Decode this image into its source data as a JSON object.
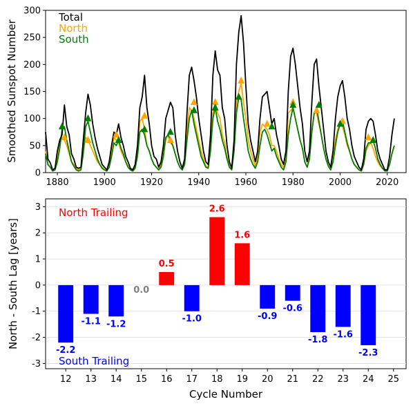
{
  "chart_data": [
    {
      "type": "line",
      "ylabel": "Smoothed Sunspot Number",
      "xlabel": "",
      "xlim": [
        1875,
        2028
      ],
      "ylim": [
        0,
        300
      ],
      "xticks": [
        1880,
        1900,
        1920,
        1940,
        1960,
        1980,
        2000,
        2020
      ],
      "yticks": [
        0,
        50,
        100,
        150,
        200,
        250,
        300
      ],
      "legend_placement": "top-left",
      "series": [
        {
          "name": "Total",
          "color": "#000000",
          "x": [
            1875,
            1876,
            1877,
            1878,
            1879,
            1880,
            1881,
            1882,
            1883,
            1884,
            1885,
            1886,
            1887,
            1888,
            1889,
            1890,
            1891,
            1892,
            1893,
            1894,
            1895,
            1896,
            1897,
            1898,
            1899,
            1900,
            1901,
            1902,
            1903,
            1904,
            1905,
            1906,
            1907,
            1908,
            1909,
            1910,
            1911,
            1912,
            1913,
            1914,
            1915,
            1916,
            1917,
            1918,
            1919,
            1920,
            1921,
            1922,
            1923,
            1924,
            1925,
            1926,
            1927,
            1928,
            1929,
            1930,
            1931,
            1932,
            1933,
            1934,
            1935,
            1936,
            1937,
            1938,
            1939,
            1940,
            1941,
            1942,
            1943,
            1944,
            1945,
            1946,
            1947,
            1948,
            1949,
            1950,
            1951,
            1952,
            1953,
            1954,
            1955,
            1956,
            1957,
            1958,
            1959,
            1960,
            1961,
            1962,
            1963,
            1964,
            1965,
            1966,
            1967,
            1968,
            1969,
            1970,
            1971,
            1972,
            1973,
            1974,
            1975,
            1976,
            1977,
            1978,
            1979,
            1980,
            1981,
            1982,
            1983,
            1984,
            1985,
            1986,
            1987,
            1988,
            1989,
            1990,
            1991,
            1992,
            1993,
            1994,
            1995,
            1996,
            1997,
            1998,
            1999,
            2000,
            2001,
            2002,
            2003,
            2004,
            2005,
            2006,
            2007,
            2008,
            2009,
            2010,
            2011,
            2012,
            2013,
            2014,
            2015,
            2016,
            2017,
            2018,
            2019,
            2020,
            2021,
            2022,
            2023
          ],
          "y": [
            75,
            25,
            18,
            5,
            8,
            40,
            60,
            70,
            125,
            85,
            70,
            35,
            25,
            10,
            8,
            10,
            60,
            110,
            145,
            125,
            90,
            65,
            45,
            30,
            15,
            10,
            5,
            20,
            50,
            75,
            70,
            90,
            65,
            50,
            30,
            20,
            8,
            5,
            15,
            50,
            120,
            140,
            180,
            120,
            90,
            50,
            30,
            25,
            10,
            20,
            50,
            100,
            115,
            130,
            120,
            70,
            40,
            20,
            8,
            25,
            110,
            180,
            195,
            170,
            140,
            100,
            70,
            40,
            20,
            15,
            70,
            180,
            225,
            190,
            180,
            120,
            100,
            50,
            20,
            8,
            60,
            200,
            260,
            290,
            240,
            160,
            90,
            60,
            40,
            20,
            40,
            100,
            140,
            145,
            150,
            120,
            90,
            100,
            70,
            50,
            25,
            15,
            40,
            150,
            215,
            230,
            200,
            160,
            120,
            90,
            40,
            20,
            40,
            130,
            200,
            210,
            160,
            120,
            80,
            40,
            20,
            10,
            40,
            100,
            140,
            160,
            170,
            140,
            100,
            80,
            50,
            30,
            20,
            10,
            5,
            25,
            80,
            95,
            100,
            95,
            70,
            40,
            25,
            15,
            5,
            5,
            30,
            70,
            100
          ]
        },
        {
          "name": "North",
          "color": "#ffa500",
          "x": [
            1875,
            1876,
            1877,
            1878,
            1879,
            1880,
            1881,
            1882,
            1883,
            1884,
            1885,
            1886,
            1887,
            1888,
            1889,
            1890,
            1891,
            1892,
            1893,
            1894,
            1895,
            1896,
            1897,
            1898,
            1899,
            1900,
            1901,
            1902,
            1903,
            1904,
            1905,
            1906,
            1907,
            1908,
            1909,
            1910,
            1911,
            1912,
            1913,
            1914,
            1915,
            1916,
            1917,
            1918,
            1919,
            1920,
            1921,
            1922,
            1923,
            1924,
            1925,
            1926,
            1927,
            1928,
            1929,
            1930,
            1931,
            1932,
            1933,
            1934,
            1935,
            1936,
            1937,
            1938,
            1939,
            1940,
            1941,
            1942,
            1943,
            1944,
            1945,
            1946,
            1947,
            1948,
            1949,
            1950,
            1951,
            1952,
            1953,
            1954,
            1955,
            1956,
            1957,
            1958,
            1959,
            1960,
            1961,
            1962,
            1963,
            1964,
            1965,
            1966,
            1967,
            1968,
            1969,
            1970,
            1971,
            1972,
            1973,
            1974,
            1975,
            1976,
            1977,
            1978,
            1979,
            1980,
            1981,
            1982,
            1983,
            1984,
            1985,
            1986,
            1987,
            1988,
            1989,
            1990,
            1991,
            1992,
            1993,
            1994,
            1995,
            1996,
            1997,
            1998,
            1999,
            2000,
            2001,
            2002,
            2003,
            2004,
            2005,
            2006,
            2007,
            2008,
            2009,
            2010,
            2011,
            2012,
            2013,
            2014,
            2015,
            2016,
            2017,
            2018,
            2019,
            2020,
            2021,
            2022,
            2023
          ],
          "y": [
            40,
            15,
            10,
            5,
            8,
            25,
            55,
            65,
            60,
            50,
            35,
            20,
            15,
            8,
            5,
            8,
            40,
            65,
            60,
            50,
            40,
            30,
            20,
            15,
            10,
            5,
            3,
            15,
            40,
            65,
            60,
            55,
            40,
            30,
            20,
            12,
            5,
            3,
            10,
            40,
            95,
            100,
            80,
            50,
            40,
            25,
            15,
            10,
            5,
            15,
            40,
            60,
            70,
            55,
            50,
            35,
            20,
            10,
            5,
            20,
            80,
            120,
            115,
            100,
            80,
            60,
            40,
            25,
            12,
            10,
            50,
            110,
            130,
            110,
            100,
            70,
            55,
            30,
            12,
            5,
            50,
            130,
            150,
            165,
            130,
            100,
            60,
            40,
            25,
            12,
            30,
            75,
            90,
            85,
            80,
            70,
            50,
            50,
            40,
            25,
            15,
            10,
            30,
            110,
            115,
            120,
            100,
            80,
            60,
            45,
            20,
            10,
            30,
            80,
            110,
            110,
            90,
            70,
            45,
            25,
            12,
            5,
            25,
            60,
            80,
            90,
            85,
            70,
            50,
            40,
            25,
            15,
            10,
            5,
            3,
            15,
            40,
            50,
            55,
            45,
            30,
            20,
            12,
            8,
            3,
            3,
            15,
            35,
            50
          ]
        },
        {
          "name": "South",
          "color": "#008000",
          "x": [
            1875,
            1876,
            1877,
            1878,
            1879,
            1880,
            1881,
            1882,
            1883,
            1884,
            1885,
            1886,
            1887,
            1888,
            1889,
            1890,
            1891,
            1892,
            1893,
            1894,
            1895,
            1896,
            1897,
            1898,
            1899,
            1900,
            1901,
            1902,
            1903,
            1904,
            1905,
            1906,
            1907,
            1908,
            1909,
            1910,
            1911,
            1912,
            1913,
            1914,
            1915,
            1916,
            1917,
            1918,
            1919,
            1920,
            1921,
            1922,
            1923,
            1924,
            1925,
            1926,
            1927,
            1928,
            1929,
            1930,
            1931,
            1932,
            1933,
            1934,
            1935,
            1936,
            1937,
            1938,
            1939,
            1940,
            1941,
            1942,
            1943,
            1944,
            1945,
            1946,
            1947,
            1948,
            1949,
            1950,
            1951,
            1952,
            1953,
            1954,
            1955,
            1956,
            1957,
            1958,
            1959,
            1960,
            1961,
            1962,
            1963,
            1964,
            1965,
            1966,
            1967,
            1968,
            1969,
            1970,
            1971,
            1972,
            1973,
            1974,
            1975,
            1976,
            1977,
            1978,
            1979,
            1980,
            1981,
            1982,
            1983,
            1984,
            1985,
            1986,
            1987,
            1988,
            1989,
            1990,
            1991,
            1992,
            1993,
            1994,
            1995,
            1996,
            1997,
            1998,
            1999,
            2000,
            2001,
            2002,
            2003,
            2004,
            2005,
            2006,
            2007,
            2008,
            2009,
            2010,
            2011,
            2012,
            2013,
            2014,
            2015,
            2016,
            2017,
            2018,
            2019,
            2020,
            2021,
            2022,
            2023
          ],
          "y": [
            35,
            15,
            10,
            3,
            5,
            20,
            45,
            80,
            85,
            60,
            40,
            20,
            12,
            5,
            3,
            5,
            35,
            85,
            95,
            75,
            55,
            40,
            25,
            15,
            8,
            5,
            3,
            10,
            30,
            55,
            50,
            60,
            45,
            35,
            20,
            10,
            5,
            3,
            8,
            30,
            75,
            80,
            70,
            50,
            40,
            25,
            15,
            10,
            5,
            10,
            30,
            65,
            70,
            60,
            50,
            35,
            20,
            10,
            5,
            15,
            60,
            100,
            115,
            90,
            70,
            50,
            30,
            20,
            10,
            8,
            40,
            100,
            120,
            95,
            80,
            60,
            45,
            25,
            10,
            5,
            40,
            110,
            140,
            135,
            100,
            70,
            40,
            25,
            15,
            8,
            20,
            50,
            75,
            80,
            70,
            55,
            40,
            45,
            30,
            20,
            10,
            5,
            20,
            70,
            100,
            120,
            100,
            80,
            60,
            45,
            20,
            10,
            25,
            75,
            110,
            120,
            95,
            70,
            45,
            25,
            12,
            5,
            20,
            50,
            75,
            90,
            95,
            75,
            55,
            40,
            25,
            15,
            10,
            5,
            3,
            15,
            45,
            55,
            55,
            60,
            45,
            25,
            15,
            8,
            3,
            3,
            15,
            35,
            50
          ]
        }
      ],
      "markers": [
        {
          "series": "North",
          "x": [
            1883,
            1893,
            1905,
            1917,
            1928,
            1938,
            1947,
            1958,
            1969,
            1980,
            1990,
            2001,
            2012
          ],
          "y": [
            65,
            60,
            70,
            105,
            60,
            130,
            130,
            170,
            90,
            130,
            115,
            95,
            65
          ]
        },
        {
          "series": "South",
          "x": [
            1882,
            1893,
            1906,
            1917,
            1928,
            1938,
            1947,
            1957,
            1971,
            1980,
            1991,
            2000,
            2014
          ],
          "y": [
            85,
            100,
            60,
            80,
            75,
            115,
            120,
            140,
            85,
            125,
            125,
            90,
            60
          ]
        }
      ]
    },
    {
      "type": "bar",
      "xlabel": "Cycle Number",
      "ylabel": "North - South Lag [years]",
      "xlim": [
        11.2,
        25.5
      ],
      "ylim": [
        -3.2,
        3.3
      ],
      "yticks": [
        -3,
        -2,
        -1,
        0,
        1,
        2,
        3
      ],
      "categories": [
        12,
        13,
        14,
        15,
        16,
        17,
        18,
        19,
        20,
        21,
        22,
        23,
        24
      ],
      "xtick_labels": [
        "12",
        "13",
        "14",
        "15",
        "16",
        "17",
        "18",
        "19",
        "20",
        "21",
        "22",
        "23",
        "24",
        "25"
      ],
      "values": [
        -2.2,
        -1.1,
        -1.2,
        0.0,
        0.5,
        -1.0,
        2.6,
        1.6,
        -0.9,
        -0.6,
        -1.8,
        -1.6,
        -2.3
      ],
      "labels": [
        "-2.2",
        "-1.1",
        "-1.2",
        "0.0",
        "0.5",
        "-1.0",
        "2.6",
        "1.6",
        "-0.9",
        "-0.6",
        "-1.8",
        "-1.6",
        "-2.3"
      ],
      "colors": {
        "positive": "#ff0000",
        "negative": "#0000ff",
        "zero": "#808080"
      },
      "grid": "horizontal",
      "annotations": [
        {
          "text": "North Trailing",
          "color": "#ff0000",
          "position": "top-left"
        },
        {
          "text": "South Trailing",
          "color": "#0000ff",
          "position": "bottom-left"
        }
      ]
    }
  ]
}
